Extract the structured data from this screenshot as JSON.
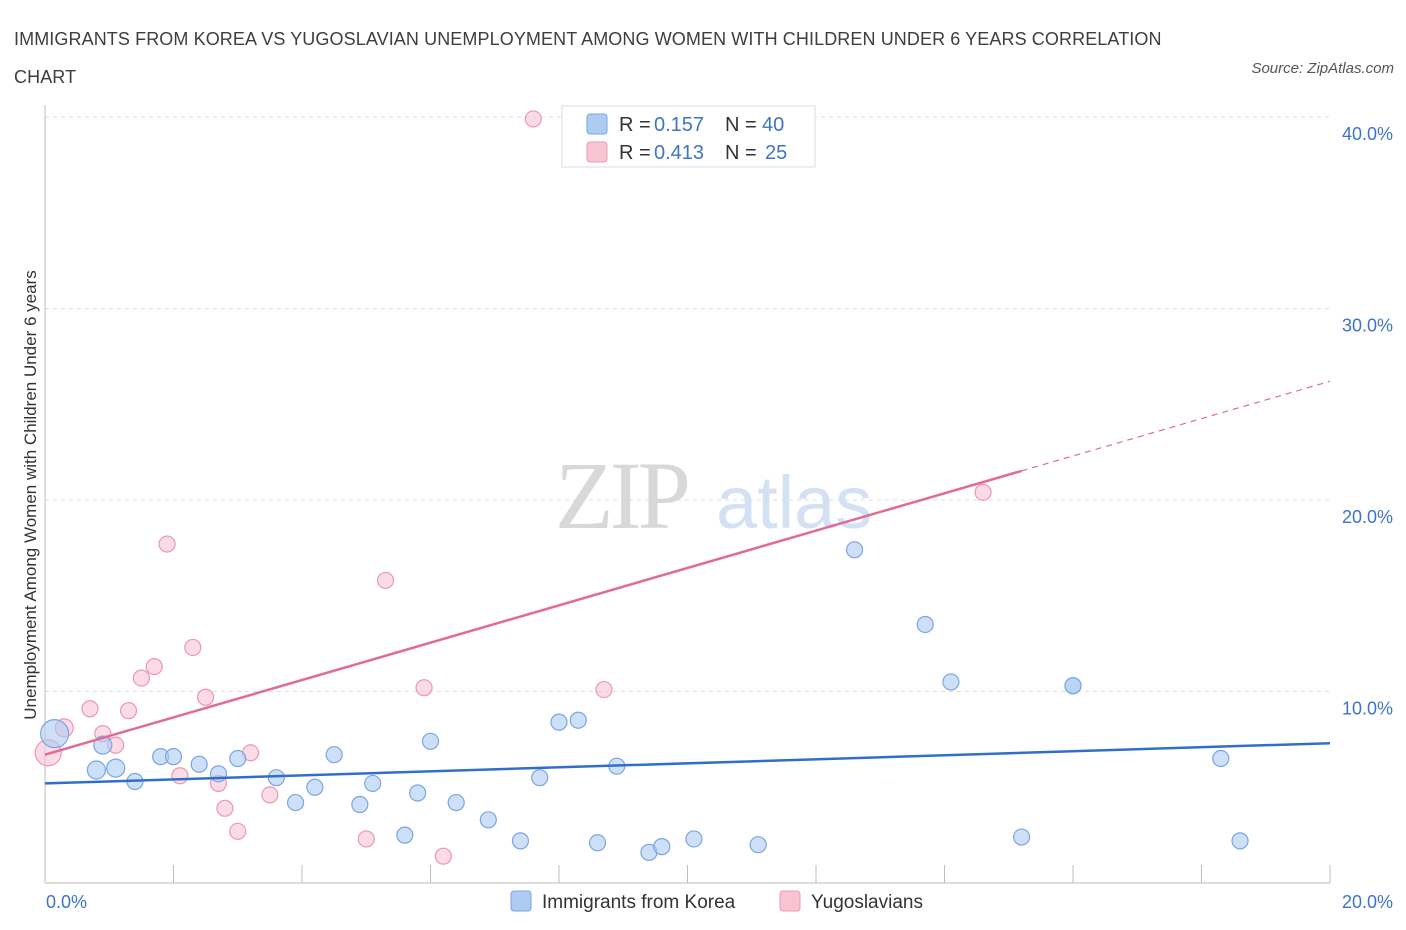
{
  "title": "IMMIGRANTS FROM KOREA VS YUGOSLAVIAN UNEMPLOYMENT AMONG WOMEN WITH CHILDREN UNDER 6 YEARS CORRELATION CHART",
  "source": "Source: ZipAtlas.com",
  "watermark": {
    "zip": "ZIP",
    "atlas": "atlas"
  },
  "colors": {
    "korea_fill": "#aecbf2",
    "korea_stroke": "#7aa6e0",
    "korea_line": "#2f6fcb",
    "yugo_fill": "#f8c3d3",
    "yugo_stroke": "#ec98b2",
    "yugo_line": "#e06b95",
    "tick_label": "#3d74c6",
    "grid": "#dddddd"
  },
  "legend": {
    "rows": [
      {
        "r_label": "R = ",
        "r_value": "0.157",
        "n_label": "N = ",
        "n_value": "40"
      },
      {
        "r_label": "R = ",
        "r_value": "0.413",
        "n_label": "N = ",
        "n_value": "25"
      }
    ]
  },
  "chart_data": {
    "type": "scatter",
    "xlabel": "",
    "ylabel": "Unemployment Among Women with Children Under 6 years",
    "xlim": [
      0,
      20
    ],
    "ylim": [
      0,
      40
    ],
    "x_tick_labels": [
      "0.0%",
      "20.0%"
    ],
    "y_ticks": [
      10,
      20,
      30,
      40
    ],
    "y_tick_labels": [
      "10.0%",
      "20.0%",
      "30.0%",
      "40.0%"
    ],
    "grid": true,
    "legend_position": "bottom",
    "series": [
      {
        "name": "Immigrants from Korea",
        "R": 0.157,
        "N": 40,
        "trend": {
          "x": [
            0,
            20
          ],
          "y": [
            5.2,
            7.3
          ],
          "dashed_from": null
        },
        "points": [
          [
            0.15,
            7.8,
            14
          ],
          [
            0.9,
            7.2,
            9
          ],
          [
            0.8,
            5.9,
            9
          ],
          [
            1.1,
            6.0,
            9
          ],
          [
            1.4,
            5.3,
            8
          ],
          [
            1.8,
            6.6,
            8
          ],
          [
            2.0,
            6.6,
            8
          ],
          [
            2.4,
            6.2,
            8
          ],
          [
            2.7,
            5.7,
            8
          ],
          [
            3.0,
            6.5,
            8
          ],
          [
            3.6,
            5.5,
            8
          ],
          [
            3.9,
            4.2,
            8
          ],
          [
            4.2,
            5.0,
            8
          ],
          [
            4.5,
            6.7,
            8
          ],
          [
            4.9,
            4.1,
            8
          ],
          [
            5.1,
            5.2,
            8
          ],
          [
            5.6,
            2.5,
            8
          ],
          [
            5.8,
            4.7,
            8
          ],
          [
            6.0,
            7.4,
            8
          ],
          [
            6.4,
            4.2,
            8
          ],
          [
            6.9,
            3.3,
            8
          ],
          [
            7.4,
            2.2,
            8
          ],
          [
            7.7,
            5.5,
            8
          ],
          [
            8.0,
            8.4,
            8
          ],
          [
            8.3,
            8.5,
            8
          ],
          [
            8.6,
            2.1,
            8
          ],
          [
            8.9,
            6.1,
            8
          ],
          [
            9.4,
            1.6,
            8
          ],
          [
            9.6,
            1.9,
            8
          ],
          [
            10.1,
            2.3,
            8
          ],
          [
            11.1,
            2.0,
            8
          ],
          [
            12.6,
            17.4,
            8
          ],
          [
            13.7,
            13.5,
            8
          ],
          [
            14.1,
            10.5,
            8
          ],
          [
            16.0,
            10.3,
            8
          ],
          [
            16.0,
            10.3,
            8
          ],
          [
            15.2,
            2.4,
            8
          ],
          [
            18.3,
            6.5,
            8
          ],
          [
            18.6,
            2.2,
            8
          ],
          [
            1.7,
            5.5,
            0
          ]
        ]
      },
      {
        "name": "Yugoslavians",
        "R": 0.413,
        "N": 25,
        "trend": {
          "x": [
            0,
            20
          ],
          "y": [
            6.7,
            26.2
          ],
          "dashed_from": 15.2
        },
        "points": [
          [
            0.05,
            6.8,
            13
          ],
          [
            0.3,
            8.1,
            9
          ],
          [
            0.7,
            9.1,
            8
          ],
          [
            0.9,
            7.8,
            8
          ],
          [
            1.1,
            7.2,
            8
          ],
          [
            1.3,
            9.0,
            8
          ],
          [
            1.5,
            10.7,
            8
          ],
          [
            1.7,
            11.3,
            8
          ],
          [
            1.9,
            17.7,
            8
          ],
          [
            2.1,
            5.6,
            8
          ],
          [
            2.3,
            12.3,
            8
          ],
          [
            2.5,
            9.7,
            8
          ],
          [
            2.7,
            5.2,
            8
          ],
          [
            2.8,
            3.9,
            8
          ],
          [
            3.0,
            2.7,
            8
          ],
          [
            3.2,
            6.8,
            8
          ],
          [
            3.5,
            4.6,
            8
          ],
          [
            5.0,
            2.3,
            8
          ],
          [
            5.3,
            15.8,
            8
          ],
          [
            5.9,
            10.2,
            8
          ],
          [
            6.2,
            1.4,
            8
          ],
          [
            7.6,
            39.9,
            8
          ],
          [
            8.7,
            10.1,
            8
          ],
          [
            14.6,
            20.4,
            8
          ],
          [
            0.0,
            6.8,
            0
          ]
        ]
      }
    ]
  }
}
